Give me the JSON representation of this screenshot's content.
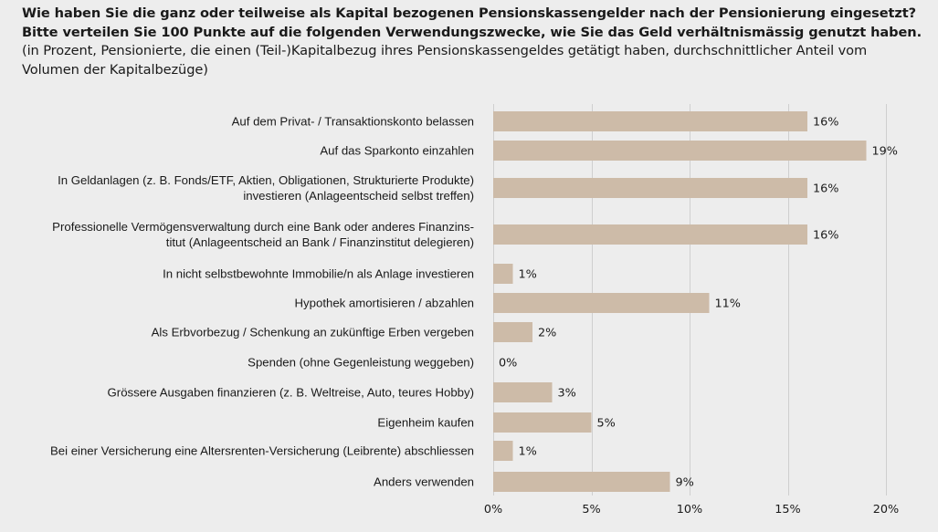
{
  "header": {
    "question_bold": "Wie haben Sie die ganz oder teilweise als Kapital bezogenen Pensionskassengelder nach der Pensionierung eingesetzt? Bitte verteilen Sie 100 Punkte auf die folgenden Verwendungszwecke, wie Sie das Geld verhältnis­mässig genutzt haben.",
    "note": " (in Prozent, Pensionierte, die einen (Teil-)Kapitalbezug ihres Pensionskassengeldes getätigt haben, durchschnittlicher Anteil vom Volumen der Kapitalbezüge)"
  },
  "colors": {
    "bar": "#cdbba8",
    "background": "#ededed",
    "grid": "#cfcfcf",
    "text": "#1a1a1a"
  },
  "chart_data": {
    "type": "bar",
    "orientation": "horizontal",
    "title": "Wie haben Sie die ganz oder teilweise als Kapital bezogenen Pensionskassengelder nach der Pensionierung eingesetzt?",
    "xlabel": "",
    "ylabel": "",
    "unit": "%",
    "xlim": [
      0,
      20
    ],
    "xticks": [
      0,
      5,
      10,
      15,
      20
    ],
    "xtick_labels": [
      "0%",
      "5%",
      "10%",
      "15%",
      "20%"
    ],
    "grid": true,
    "legend": "none",
    "categories": [
      [
        "Auf dem Privat- / Transaktionskonto belassen"
      ],
      [
        "Auf das Sparkonto einzahlen"
      ],
      [
        "In Geldanlagen (z. B. Fonds/ETF, Aktien, Obligationen, Strukturierte Produkte)",
        "investieren (Anlageentscheid selbst treffen)"
      ],
      [
        "Professionelle Vermögensverwaltung durch eine Bank oder anderes Finanzins-",
        "titut (Anlageentscheid an Bank / Finanzinstitut delegieren)"
      ],
      [
        "In nicht selbstbewohnte Immobilie/n als Anlage investieren"
      ],
      [
        "Hypothek amortisieren / abzahlen"
      ],
      [
        "Als Erbvorbezug / Schenkung an zukünftige Erben vergeben"
      ],
      [
        "Spenden (ohne Gegenleistung weggeben)"
      ],
      [
        "Grössere Ausgaben finanzieren (z. B. Weltreise, Auto, teures Hobby)"
      ],
      [
        "Eigenheim kaufen"
      ],
      [
        "Bei einer Versicherung eine Altersrenten-Versicherung (Leibrente) abschliessen"
      ],
      [
        "Anders verwenden"
      ]
    ],
    "values": [
      16,
      19,
      16,
      16,
      1,
      11,
      2,
      0,
      3,
      5,
      1,
      9
    ],
    "value_labels": [
      "16%",
      "19%",
      "16%",
      "16%",
      "1%",
      "11%",
      "2%",
      "0%",
      "3%",
      "5%",
      "1%",
      "9%"
    ]
  }
}
